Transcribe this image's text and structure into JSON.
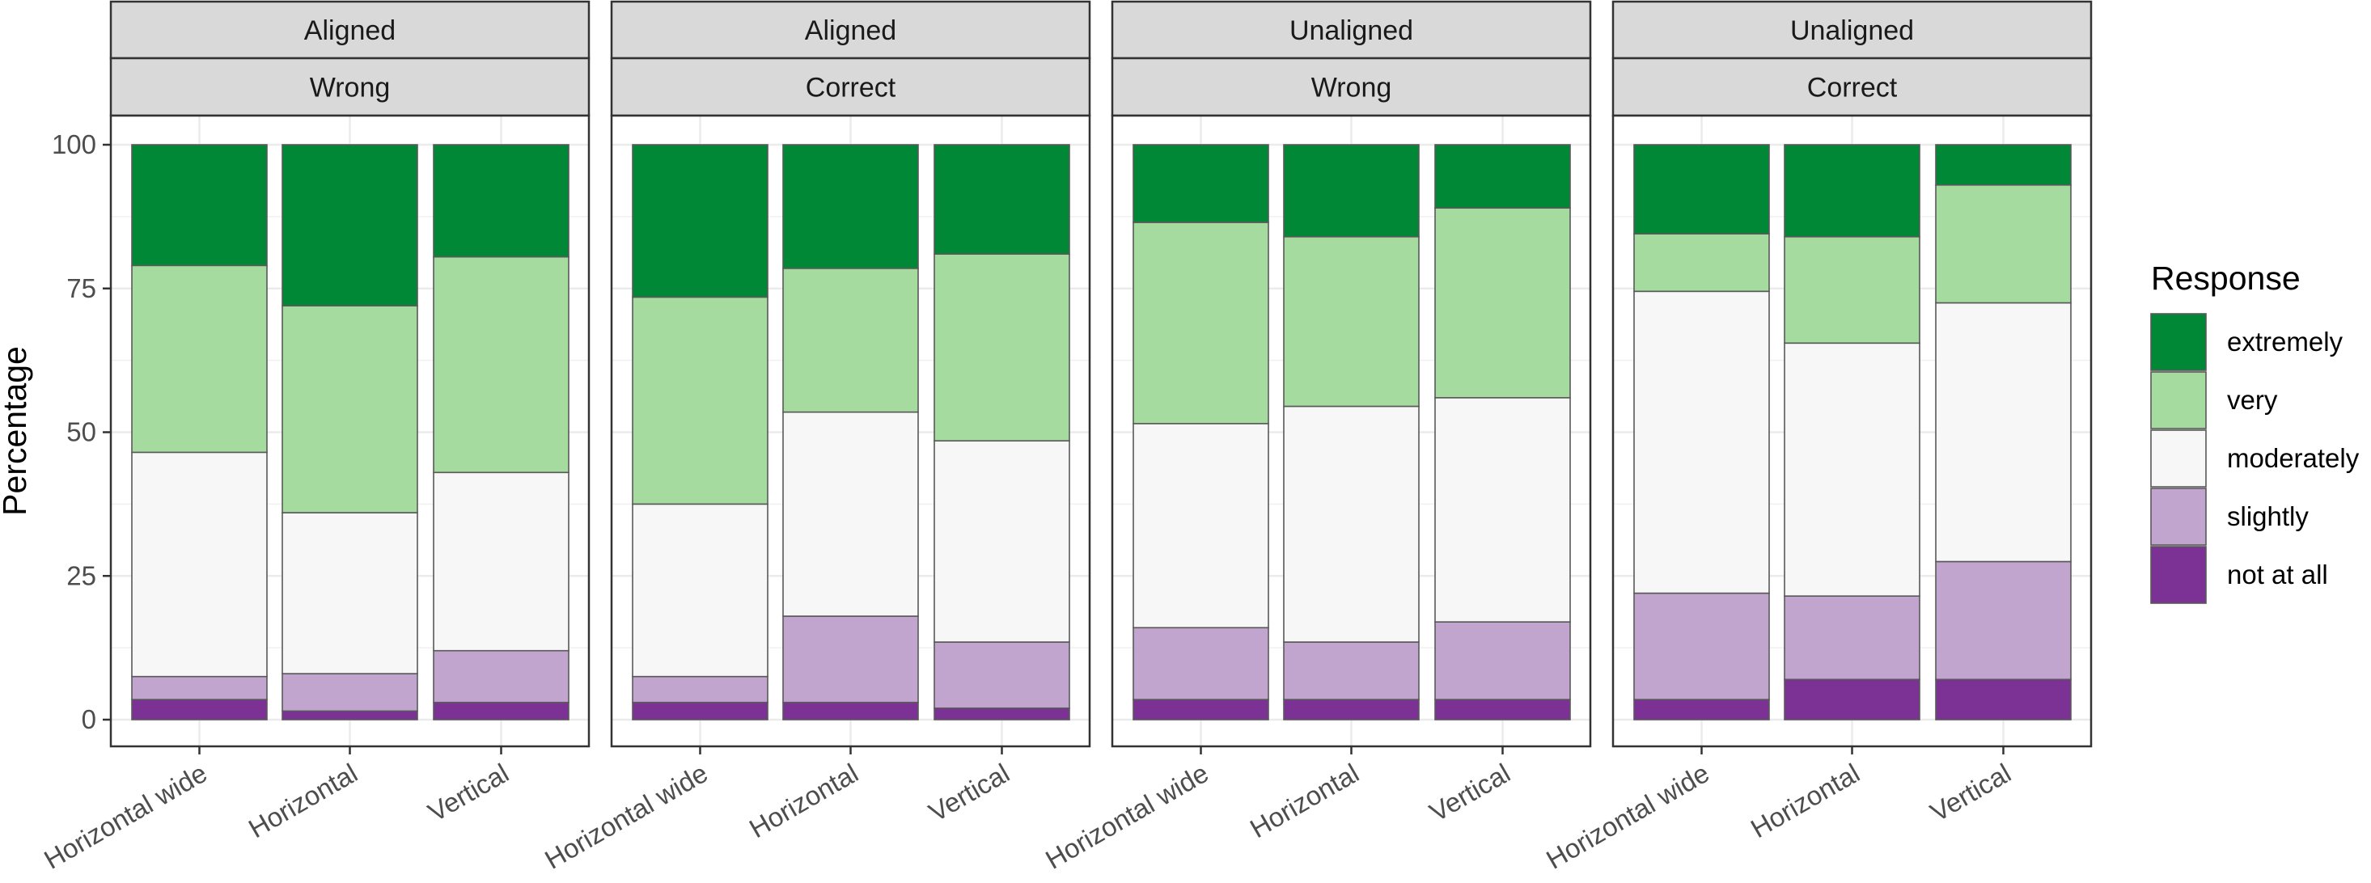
{
  "chart_data": {
    "type": "bar",
    "stacked": true,
    "ylabel": "Percentage",
    "ylim": [
      0,
      100
    ],
    "yticks": [
      0,
      25,
      50,
      75,
      100
    ],
    "grid": true,
    "legend": {
      "title": "Response",
      "position": "right",
      "entries": [
        "extremely",
        "very",
        "moderately",
        "slightly",
        "not at all"
      ]
    },
    "colors": {
      "not at all": "#7b3294",
      "slightly": "#c2a5cf",
      "moderately": "#f7f7f7",
      "very": "#a6dba0",
      "extremely": "#008837"
    },
    "categories": [
      "Horizontal wide",
      "Horizontal",
      "Vertical"
    ],
    "series_order": [
      "not at all",
      "slightly",
      "moderately",
      "very",
      "extremely"
    ],
    "panels": [
      {
        "strip_top": "Aligned",
        "strip_bottom": "Wrong",
        "series": [
          {
            "name": "not at all",
            "values": [
              3.5,
              1.5,
              3.0
            ]
          },
          {
            "name": "slightly",
            "values": [
              4.0,
              6.5,
              9.0
            ]
          },
          {
            "name": "moderately",
            "values": [
              39.0,
              28.0,
              31.0
            ]
          },
          {
            "name": "very",
            "values": [
              32.5,
              36.0,
              37.5
            ]
          },
          {
            "name": "extremely",
            "values": [
              21.0,
              28.0,
              19.5
            ]
          }
        ]
      },
      {
        "strip_top": "Aligned",
        "strip_bottom": "Correct",
        "series": [
          {
            "name": "not at all",
            "values": [
              3.0,
              3.0,
              2.0
            ]
          },
          {
            "name": "slightly",
            "values": [
              4.5,
              15.0,
              11.5
            ]
          },
          {
            "name": "moderately",
            "values": [
              30.0,
              35.5,
              35.0
            ]
          },
          {
            "name": "very",
            "values": [
              36.0,
              25.0,
              32.5
            ]
          },
          {
            "name": "extremely",
            "values": [
              26.5,
              21.5,
              19.0
            ]
          }
        ]
      },
      {
        "strip_top": "Unaligned",
        "strip_bottom": "Wrong",
        "series": [
          {
            "name": "not at all",
            "values": [
              3.5,
              3.5,
              3.5
            ]
          },
          {
            "name": "slightly",
            "values": [
              12.5,
              10.0,
              13.5
            ]
          },
          {
            "name": "moderately",
            "values": [
              35.5,
              41.0,
              39.0
            ]
          },
          {
            "name": "very",
            "values": [
              35.0,
              29.5,
              33.0
            ]
          },
          {
            "name": "extremely",
            "values": [
              13.5,
              16.0,
              11.0
            ]
          }
        ]
      },
      {
        "strip_top": "Unaligned",
        "strip_bottom": "Correct",
        "series": [
          {
            "name": "not at all",
            "values": [
              3.5,
              7.0,
              7.0
            ]
          },
          {
            "name": "slightly",
            "values": [
              18.5,
              14.5,
              20.5
            ]
          },
          {
            "name": "moderately",
            "values": [
              52.5,
              44.0,
              45.0
            ]
          },
          {
            "name": "very",
            "values": [
              10.0,
              18.5,
              20.5
            ]
          },
          {
            "name": "extremely",
            "values": [
              15.5,
              16.0,
              7.0
            ]
          }
        ]
      }
    ]
  }
}
